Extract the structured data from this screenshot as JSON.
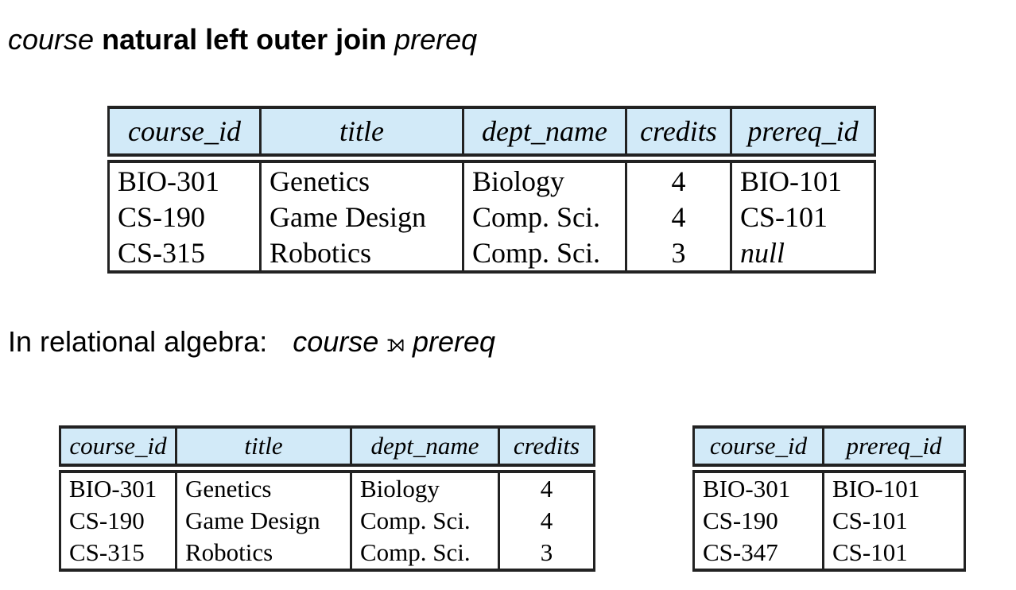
{
  "heading": {
    "left_relation": "course",
    "operator": "natural left outer join",
    "right_relation": "prereq"
  },
  "algebra": {
    "prefix": "In relational algebra:",
    "left_relation": "course",
    "operator_symbol": "⟕",
    "right_relation": "prereq"
  },
  "result_table": {
    "columns": [
      "course_id",
      "title",
      "dept_name",
      "credits",
      "prereq_id"
    ],
    "rows": [
      [
        "BIO-301",
        "Genetics",
        "Biology",
        "4",
        "BIO-101"
      ],
      [
        "CS-190",
        "Game Design",
        "Comp. Sci.",
        "4",
        "CS-101"
      ],
      [
        "CS-315",
        "Robotics",
        "Comp. Sci.",
        "3",
        "null"
      ]
    ]
  },
  "course_table": {
    "columns": [
      "course_id",
      "title",
      "dept_name",
      "credits"
    ],
    "rows": [
      [
        "BIO-301",
        "Genetics",
        "Biology",
        "4"
      ],
      [
        "CS-190",
        "Game Design",
        "Comp. Sci.",
        "4"
      ],
      [
        "CS-315",
        "Robotics",
        "Comp. Sci.",
        "3"
      ]
    ]
  },
  "prereq_table": {
    "columns": [
      "course_id",
      "prereq_id"
    ],
    "rows": [
      [
        "BIO-301",
        "BIO-101"
      ],
      [
        "CS-190",
        "CS-101"
      ],
      [
        "CS-347",
        "CS-101"
      ]
    ]
  },
  "colors": {
    "header_fill": "#d2eaf8",
    "border": "#222222"
  }
}
